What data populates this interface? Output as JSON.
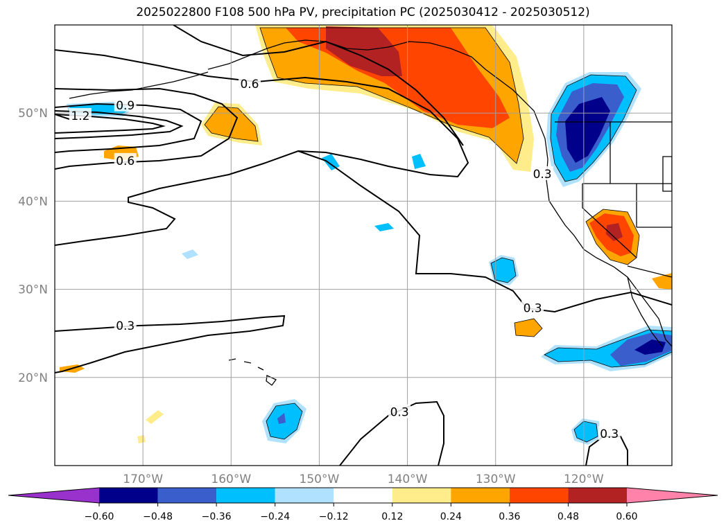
{
  "title": "2025022800 F108 500 hPa PV, precipitation PC (2025030412 - 2025030512)",
  "map": {
    "lon_range": [
      -180,
      -110
    ],
    "lat_range": [
      10,
      60
    ],
    "lon_ticks": [
      {
        "value": -170,
        "label": "170°W"
      },
      {
        "value": -160,
        "label": "160°W"
      },
      {
        "value": -150,
        "label": "150°W"
      },
      {
        "value": -140,
        "label": "140°W"
      },
      {
        "value": -130,
        "label": "130°W"
      },
      {
        "value": -120,
        "label": "120°W"
      }
    ],
    "lat_ticks": [
      {
        "value": 20,
        "label": "20°N"
      },
      {
        "value": 30,
        "label": "30°N"
      },
      {
        "value": 40,
        "label": "40°N"
      },
      {
        "value": 50,
        "label": "50°N"
      }
    ],
    "gridlines": true,
    "contour_labels": [
      {
        "text": "1.2",
        "lon": -177.1,
        "lat": 49.7
      },
      {
        "text": "0.9",
        "lon": -172.0,
        "lat": 50.9
      },
      {
        "text": "0.6",
        "lon": -157.9,
        "lat": 53.3
      },
      {
        "text": "0.6",
        "lon": -172.0,
        "lat": 44.6
      },
      {
        "text": "0.3",
        "lon": -172.0,
        "lat": 25.9
      },
      {
        "text": "0.3",
        "lon": -124.7,
        "lat": 43.1
      },
      {
        "text": "0.3",
        "lon": -125.8,
        "lat": 27.9
      },
      {
        "text": "0.3",
        "lon": -140.9,
        "lat": 16.1
      },
      {
        "text": "0.3",
        "lon": -117.1,
        "lat": 13.6
      }
    ]
  },
  "colorbar": {
    "levels": [
      -0.6,
      -0.48,
      -0.36,
      -0.24,
      -0.12,
      0.12,
      0.24,
      0.36,
      0.48,
      0.6
    ],
    "tick_labels": [
      "−0.60",
      "−0.48",
      "−0.36",
      "−0.24",
      "−0.12",
      "0.12",
      "0.24",
      "0.36",
      "0.48",
      "0.60"
    ],
    "colors": [
      "#9932cc",
      "#00008b",
      "#3a5fcd",
      "#00bfff",
      "#b0e2ff",
      "#ffffff",
      "#ffec8b",
      "#ffa500",
      "#ff4500",
      "#b22222",
      "#ff82ab"
    ]
  }
}
